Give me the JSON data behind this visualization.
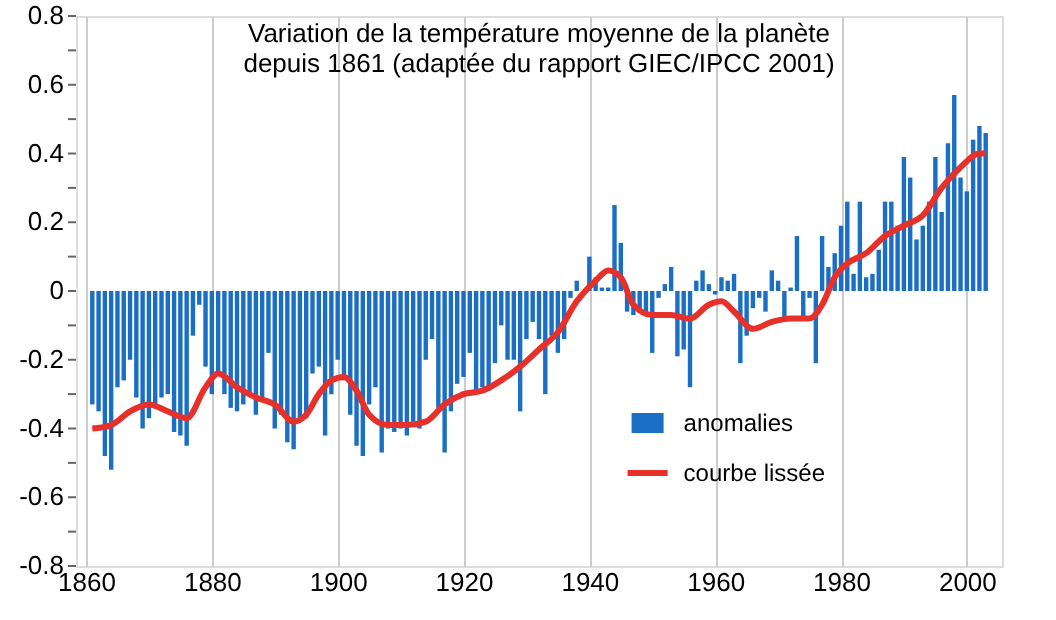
{
  "chart_data": {
    "type": "bar",
    "title": "Variation de la température moyenne de la planète\ndepuis 1861 (adaptée du rapport GIEC/IPCC 2001)",
    "x": [
      1861,
      1862,
      1863,
      1864,
      1865,
      1866,
      1867,
      1868,
      1869,
      1870,
      1871,
      1872,
      1873,
      1874,
      1875,
      1876,
      1877,
      1878,
      1879,
      1880,
      1881,
      1882,
      1883,
      1884,
      1885,
      1886,
      1887,
      1888,
      1889,
      1890,
      1891,
      1892,
      1893,
      1894,
      1895,
      1896,
      1897,
      1898,
      1899,
      1900,
      1901,
      1902,
      1903,
      1904,
      1905,
      1906,
      1907,
      1908,
      1909,
      1910,
      1911,
      1912,
      1913,
      1914,
      1915,
      1916,
      1917,
      1918,
      1919,
      1920,
      1921,
      1922,
      1923,
      1924,
      1925,
      1926,
      1927,
      1928,
      1929,
      1930,
      1931,
      1932,
      1933,
      1934,
      1935,
      1936,
      1937,
      1938,
      1939,
      1940,
      1941,
      1942,
      1943,
      1944,
      1945,
      1946,
      1947,
      1948,
      1949,
      1950,
      1951,
      1952,
      1953,
      1954,
      1955,
      1956,
      1957,
      1958,
      1959,
      1960,
      1961,
      1962,
      1963,
      1964,
      1965,
      1966,
      1967,
      1968,
      1969,
      1970,
      1971,
      1972,
      1973,
      1974,
      1975,
      1976,
      1977,
      1978,
      1979,
      1980,
      1981,
      1982,
      1983,
      1984,
      1985,
      1986,
      1987,
      1988,
      1989,
      1990,
      1991,
      1992,
      1993,
      1994,
      1995,
      1996,
      1997,
      1998,
      1999,
      2000,
      2001,
      2002,
      2003
    ],
    "series": [
      {
        "name": "anomalies",
        "type": "bar",
        "color": "#1a6fc4",
        "values": [
          -0.33,
          -0.35,
          -0.48,
          -0.52,
          -0.28,
          -0.26,
          -0.2,
          -0.31,
          -0.4,
          -0.37,
          -0.34,
          -0.31,
          -0.3,
          -0.41,
          -0.42,
          -0.45,
          -0.13,
          -0.04,
          -0.22,
          -0.3,
          -0.24,
          -0.3,
          -0.34,
          -0.35,
          -0.33,
          -0.3,
          -0.36,
          -0.32,
          -0.18,
          -0.4,
          -0.36,
          -0.44,
          -0.46,
          -0.38,
          -0.37,
          -0.24,
          -0.22,
          -0.42,
          -0.3,
          -0.2,
          -0.26,
          -0.36,
          -0.45,
          -0.48,
          -0.33,
          -0.28,
          -0.47,
          -0.4,
          -0.41,
          -0.4,
          -0.42,
          -0.38,
          -0.4,
          -0.2,
          -0.14,
          -0.34,
          -0.47,
          -0.35,
          -0.27,
          -0.25,
          -0.18,
          -0.3,
          -0.28,
          -0.29,
          -0.21,
          -0.1,
          -0.2,
          -0.2,
          -0.35,
          -0.14,
          -0.09,
          -0.14,
          -0.3,
          -0.13,
          -0.18,
          -0.14,
          -0.02,
          0.03,
          null,
          0.1,
          0.04,
          0.01,
          0.01,
          0.25,
          0.14,
          -0.06,
          -0.07,
          -0.05,
          -0.07,
          -0.18,
          -0.02,
          0.02,
          0.07,
          -0.19,
          -0.17,
          -0.28,
          0.03,
          0.06,
          0.02,
          -0.01,
          0.04,
          0.03,
          0.05,
          -0.21,
          -0.13,
          -0.05,
          -0.02,
          -0.06,
          0.06,
          0.03,
          -0.08,
          0.01,
          0.16,
          -0.08,
          -0.02,
          -0.21,
          0.16,
          0.07,
          0.11,
          0.19,
          0.26,
          0.05,
          0.26,
          0.04,
          0.05,
          0.12,
          0.26,
          0.26,
          0.19,
          0.39,
          0.33,
          0.15,
          0.19,
          0.26,
          0.39,
          0.23,
          0.43,
          0.57,
          0.33,
          0.29,
          0.44,
          0.48,
          0.46
        ]
      },
      {
        "name": "courbe lissée",
        "type": "line",
        "color": "#e8302a",
        "x": [
          1861,
          1864,
          1867,
          1870,
          1873,
          1876,
          1879,
          1881,
          1884,
          1887,
          1890,
          1893,
          1895,
          1897,
          1899,
          1901,
          1903,
          1905,
          1908,
          1911,
          1914,
          1917,
          1920,
          1923,
          1926,
          1929,
          1932,
          1935,
          1938,
          1941,
          1943,
          1945,
          1947,
          1950,
          1953,
          1956,
          1959,
          1961,
          1963,
          1966,
          1969,
          1972,
          1975,
          1977,
          1979,
          1981,
          1984,
          1987,
          1990,
          1993,
          1996,
          1999,
          2002,
          2003
        ],
        "values": [
          -0.4,
          -0.39,
          -0.35,
          -0.33,
          -0.35,
          -0.37,
          -0.28,
          -0.24,
          -0.28,
          -0.31,
          -0.33,
          -0.38,
          -0.36,
          -0.3,
          -0.26,
          -0.25,
          -0.29,
          -0.36,
          -0.39,
          -0.39,
          -0.38,
          -0.33,
          -0.3,
          -0.29,
          -0.26,
          -0.22,
          -0.17,
          -0.12,
          -0.03,
          0.03,
          0.06,
          0.04,
          -0.04,
          -0.07,
          -0.07,
          -0.08,
          -0.04,
          -0.03,
          -0.06,
          -0.11,
          -0.09,
          -0.08,
          -0.08,
          -0.04,
          0.04,
          0.08,
          0.11,
          0.16,
          0.19,
          0.22,
          0.3,
          0.36,
          0.4,
          0.4
        ]
      }
    ],
    "xlim": [
      1860,
      2004
    ],
    "xticks": [
      1860,
      1880,
      1900,
      1920,
      1940,
      1960,
      1980,
      2000
    ],
    "ylim": [
      -0.8,
      0.8
    ],
    "yticks": [
      -0.8,
      {
        "value": -0.7,
        "label": null
      },
      -0.6,
      {
        "value": -0.5,
        "label": null
      },
      -0.4,
      {
        "value": -0.3,
        "label": null
      },
      -0.2,
      {
        "value": -0.1,
        "label": null
      },
      0,
      {
        "value": 0.1,
        "label": null
      },
      0.2,
      {
        "value": 0.3,
        "label": null
      },
      0.4,
      {
        "value": 0.5,
        "label": null
      },
      0.6,
      {
        "value": 0.7,
        "label": null
      },
      0.8
    ],
    "grid": "x",
    "legend": "bottom right",
    "line_style": "solid",
    "marker": "none"
  }
}
